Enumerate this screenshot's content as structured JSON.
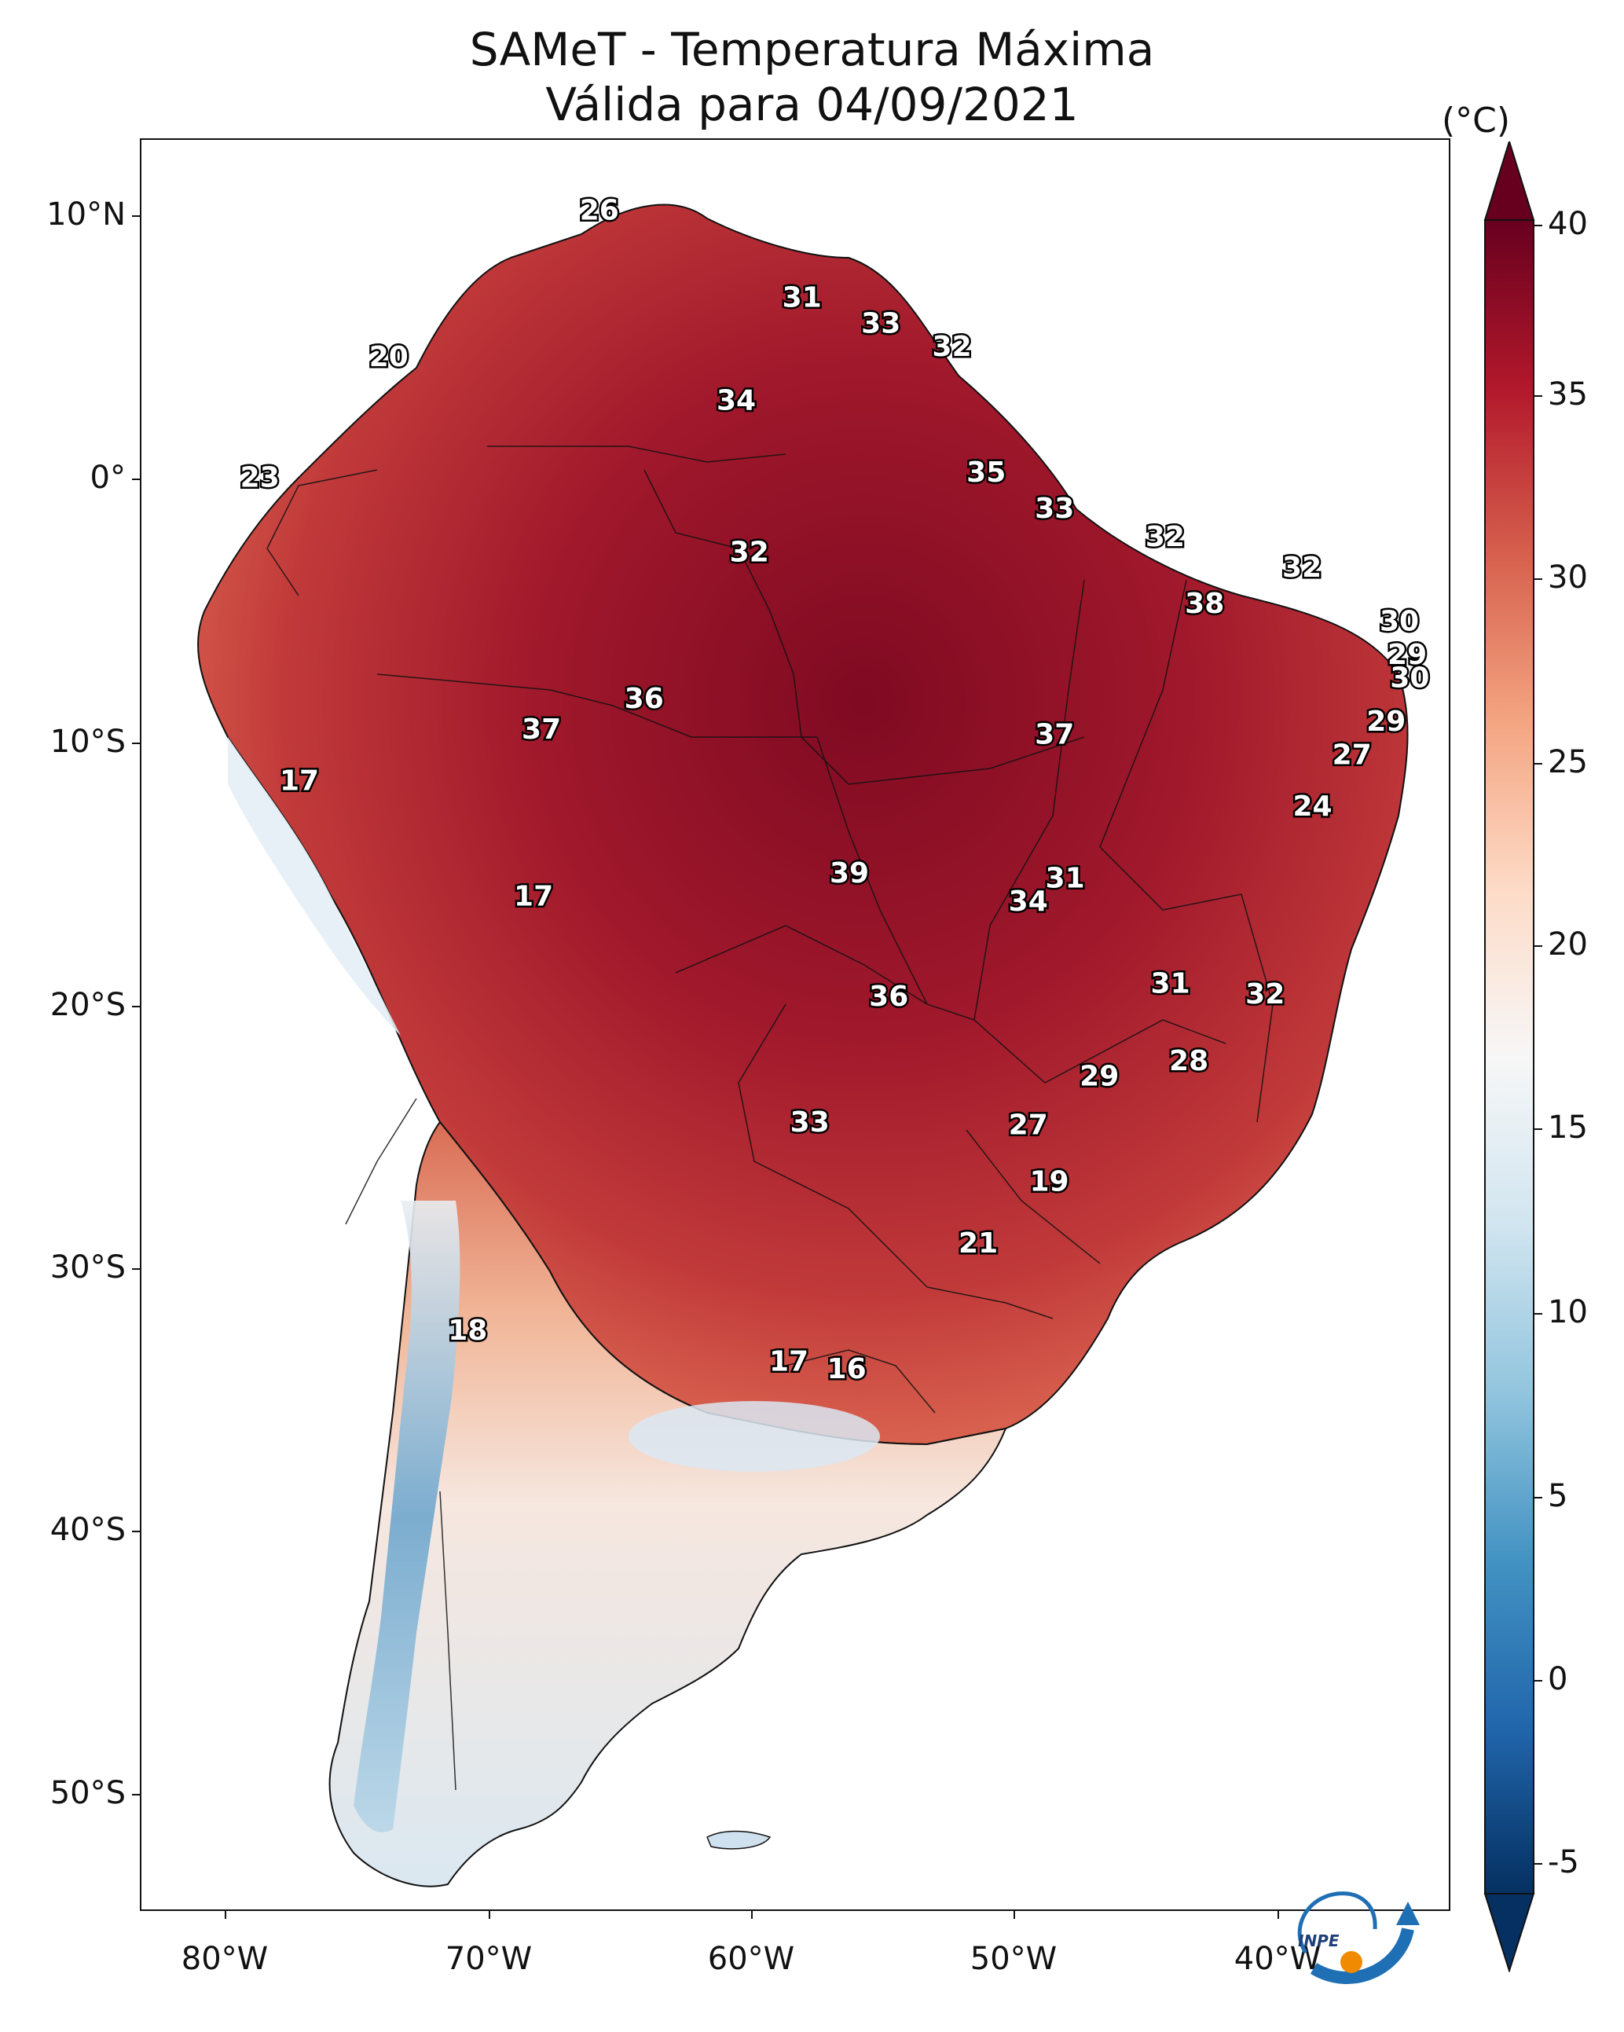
{
  "title": {
    "line1": "SAMeT - Temperatura Máxima",
    "line2": "Válida para 04/09/2021"
  },
  "axes": {
    "lat_labels": [
      "10°N",
      "0°",
      "10°S",
      "20°S",
      "30°S",
      "40°S",
      "50°S"
    ],
    "lon_labels": [
      "80°W",
      "70°W",
      "60°W",
      "50°W",
      "40°W"
    ]
  },
  "colorbar": {
    "unit": "(°C)",
    "ticks": [
      "40",
      "35",
      "30",
      "25",
      "20",
      "15",
      "10",
      "5",
      "0",
      "-5"
    ],
    "range": [
      -5,
      40
    ],
    "colors": [
      "#053061",
      "#2166ac",
      "#4393c3",
      "#92c5de",
      "#d1e5f0",
      "#f7f7f7",
      "#fddbc7",
      "#f4a582",
      "#d6604d",
      "#b2182b",
      "#67001f"
    ]
  },
  "stations": [
    {
      "label": "26",
      "lon": -65.6,
      "lat": 10.2
    },
    {
      "label": "20",
      "lon": -73.6,
      "lat": 4.5
    },
    {
      "label": "31",
      "lon": -57.9,
      "lat": 6.8
    },
    {
      "label": "33",
      "lon": -54.9,
      "lat": 5.8
    },
    {
      "label": "32",
      "lon": -52.2,
      "lat": 4.9
    },
    {
      "label": "34",
      "lon": -60.4,
      "lat": 2.8
    },
    {
      "label": "35",
      "lon": -50.9,
      "lat": 0.0
    },
    {
      "label": "23",
      "lon": -78.5,
      "lat": -0.2
    },
    {
      "label": "33",
      "lon": -48.3,
      "lat": -1.4
    },
    {
      "label": "32",
      "lon": -44.1,
      "lat": -2.5
    },
    {
      "label": "32",
      "lon": -59.9,
      "lat": -3.1
    },
    {
      "label": "32",
      "lon": -38.9,
      "lat": -3.7
    },
    {
      "label": "38",
      "lon": -42.6,
      "lat": -5.1
    },
    {
      "label": "30",
      "lon": -35.2,
      "lat": -5.8
    },
    {
      "label": "29",
      "lon": -34.9,
      "lat": -7.1
    },
    {
      "label": "30",
      "lon": -34.8,
      "lat": -8.0
    },
    {
      "label": "36",
      "lon": -63.9,
      "lat": -8.8
    },
    {
      "label": "37",
      "lon": -67.8,
      "lat": -10.0
    },
    {
      "label": "37",
      "lon": -48.3,
      "lat": -10.2
    },
    {
      "label": "29",
      "lon": -35.7,
      "lat": -9.7
    },
    {
      "label": "27",
      "lon": -37.0,
      "lat": -11.0
    },
    {
      "label": "17",
      "lon": -77.0,
      "lat": -12.0
    },
    {
      "label": "24",
      "lon": -38.5,
      "lat": -13.0
    },
    {
      "label": "39",
      "lon": -56.1,
      "lat": -15.6
    },
    {
      "label": "31",
      "lon": -47.9,
      "lat": -15.8
    },
    {
      "label": "34",
      "lon": -49.3,
      "lat": -16.7
    },
    {
      "label": "17",
      "lon": -68.1,
      "lat": -16.5
    },
    {
      "label": "31",
      "lon": -43.9,
      "lat": -19.9
    },
    {
      "label": "32",
      "lon": -40.3,
      "lat": -20.3
    },
    {
      "label": "36",
      "lon": -54.6,
      "lat": -20.4
    },
    {
      "label": "28",
      "lon": -43.2,
      "lat": -22.9
    },
    {
      "label": "29",
      "lon": -46.6,
      "lat": -23.5
    },
    {
      "label": "33",
      "lon": -57.6,
      "lat": -25.3
    },
    {
      "label": "27",
      "lon": -49.3,
      "lat": -25.4
    },
    {
      "label": "19",
      "lon": -48.5,
      "lat": -27.6
    },
    {
      "label": "21",
      "lon": -51.2,
      "lat": -30.0
    },
    {
      "label": "18",
      "lon": -70.6,
      "lat": -33.4
    },
    {
      "label": "17",
      "lon": -58.4,
      "lat": -34.6
    },
    {
      "label": "16",
      "lon": -56.2,
      "lat": -34.9
    }
  ]
}
